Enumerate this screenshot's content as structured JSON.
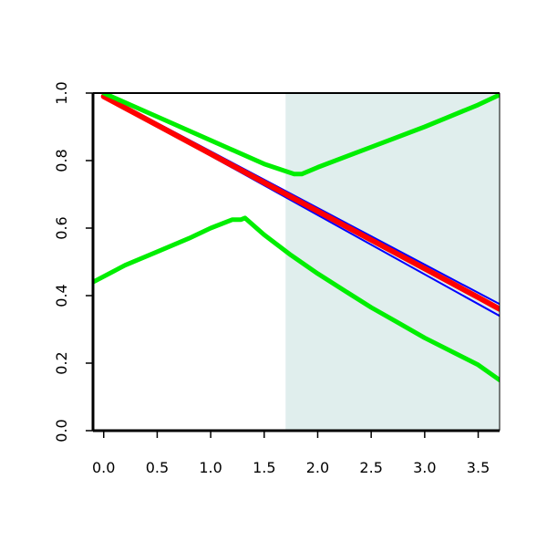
{
  "chart_data": {
    "type": "line",
    "title": "",
    "xlabel": "",
    "ylabel": "",
    "xlim": [
      -0.1,
      3.7
    ],
    "ylim": [
      0.0,
      1.0
    ],
    "x_ticks": [
      0.0,
      0.5,
      1.0,
      1.5,
      2.0,
      2.5,
      3.0,
      3.5
    ],
    "x_tick_labels": [
      "0.0",
      "0.5",
      "1.0",
      "1.5",
      "2.0",
      "2.5",
      "3.0",
      "3.5"
    ],
    "y_ticks": [
      0.0,
      0.2,
      0.4,
      0.6,
      0.8,
      1.0
    ],
    "y_tick_labels": [
      "0.0",
      "0.2",
      "0.4",
      "0.6",
      "0.8",
      "1.0"
    ],
    "shaded_region": {
      "x_start": 1.7,
      "x_end": 3.7,
      "color": "#e0eeed"
    },
    "grid": false,
    "legend": "none",
    "series": [
      {
        "color": "#0000ff",
        "width": 2,
        "x": [
          0.0,
          3.7
        ],
        "y": [
          0.99,
          0.34
        ]
      },
      {
        "color": "#0000ff",
        "width": 2,
        "x": [
          0.0,
          3.7
        ],
        "y": [
          0.995,
          0.375
        ]
      },
      {
        "color": "#ff0000",
        "width": 6,
        "x": [
          0.0,
          0.5,
          1.0,
          1.5,
          2.0,
          2.5,
          3.0,
          3.5,
          3.7
        ],
        "y": [
          0.99,
          0.905,
          0.82,
          0.735,
          0.65,
          0.565,
          0.48,
          0.395,
          0.36
        ]
      },
      {
        "color": "#00ee00",
        "width": 5,
        "x": [
          0.0,
          0.5,
          1.0,
          1.5,
          1.78,
          1.85,
          2.0,
          2.5,
          3.0,
          3.5,
          3.7
        ],
        "y": [
          1.0,
          0.93,
          0.86,
          0.79,
          0.76,
          0.76,
          0.78,
          0.84,
          0.9,
          0.965,
          0.995
        ]
      },
      {
        "color": "#00ee00",
        "width": 5,
        "x": [
          -0.1,
          0.2,
          0.5,
          0.8,
          1.0,
          1.2,
          1.28,
          1.32,
          1.5,
          1.75,
          2.0,
          2.25,
          2.5,
          2.75,
          3.0,
          3.25,
          3.5,
          3.7
        ],
        "y": [
          0.44,
          0.49,
          0.53,
          0.57,
          0.6,
          0.625,
          0.625,
          0.63,
          0.58,
          0.52,
          0.465,
          0.415,
          0.365,
          0.32,
          0.275,
          0.235,
          0.195,
          0.15
        ]
      }
    ]
  }
}
